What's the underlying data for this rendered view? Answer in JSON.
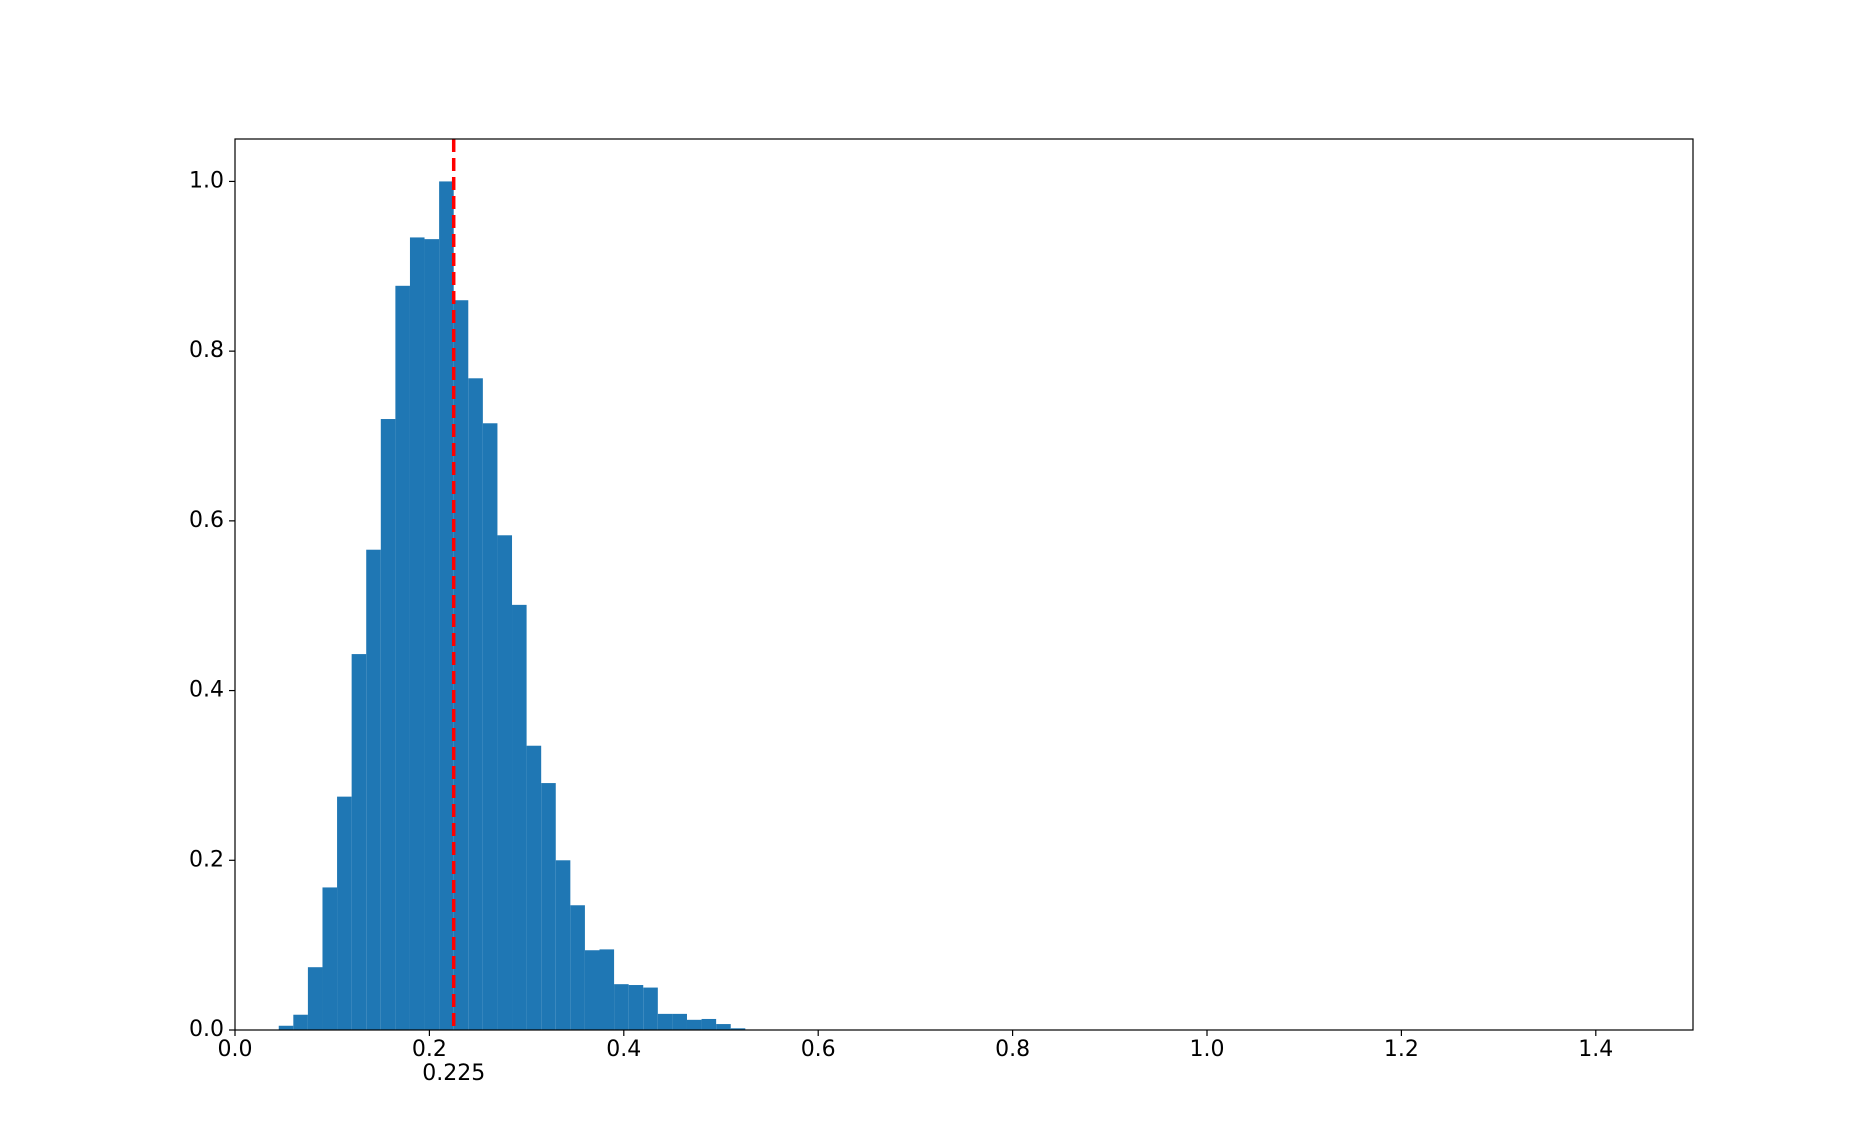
{
  "chart_data": {
    "type": "histogram",
    "bins": [
      0.045,
      0.06,
      0.075,
      0.09,
      0.105,
      0.12,
      0.135,
      0.15,
      0.165,
      0.18,
      0.195,
      0.21,
      0.225,
      0.24,
      0.255,
      0.27,
      0.285,
      0.3,
      0.315,
      0.33,
      0.345,
      0.36,
      0.375,
      0.39,
      0.405,
      0.42,
      0.435,
      0.45,
      0.465,
      0.48,
      0.495,
      0.51,
      0.525
    ],
    "counts": [
      0.005,
      0.018,
      0.074,
      0.168,
      0.275,
      0.443,
      0.566,
      0.72,
      0.877,
      0.934,
      0.932,
      1.0,
      0.86,
      0.768,
      0.715,
      0.583,
      0.501,
      0.335,
      0.291,
      0.2,
      0.147,
      0.094,
      0.095,
      0.054,
      0.053,
      0.05,
      0.019,
      0.019,
      0.012,
      0.013,
      0.007,
      0.002
    ],
    "color": "#1f77b4",
    "xlim": [
      0,
      1.5
    ],
    "xticks": [
      {
        "value": 0,
        "label": "0.0"
      },
      0.2,
      0.4,
      0.6,
      0.8,
      {
        "value": 1,
        "label": "1.0"
      },
      1.2,
      1.4
    ],
    "ylim": [
      0,
      1.05
    ],
    "yticks": [
      {
        "value": 0,
        "label": "0.0"
      },
      0.2,
      0.4,
      0.6,
      0.8,
      {
        "value": 1,
        "label": "1.0"
      }
    ],
    "vline": {
      "x": 0.225,
      "color": "#ff0000"
    },
    "grid": false
  }
}
